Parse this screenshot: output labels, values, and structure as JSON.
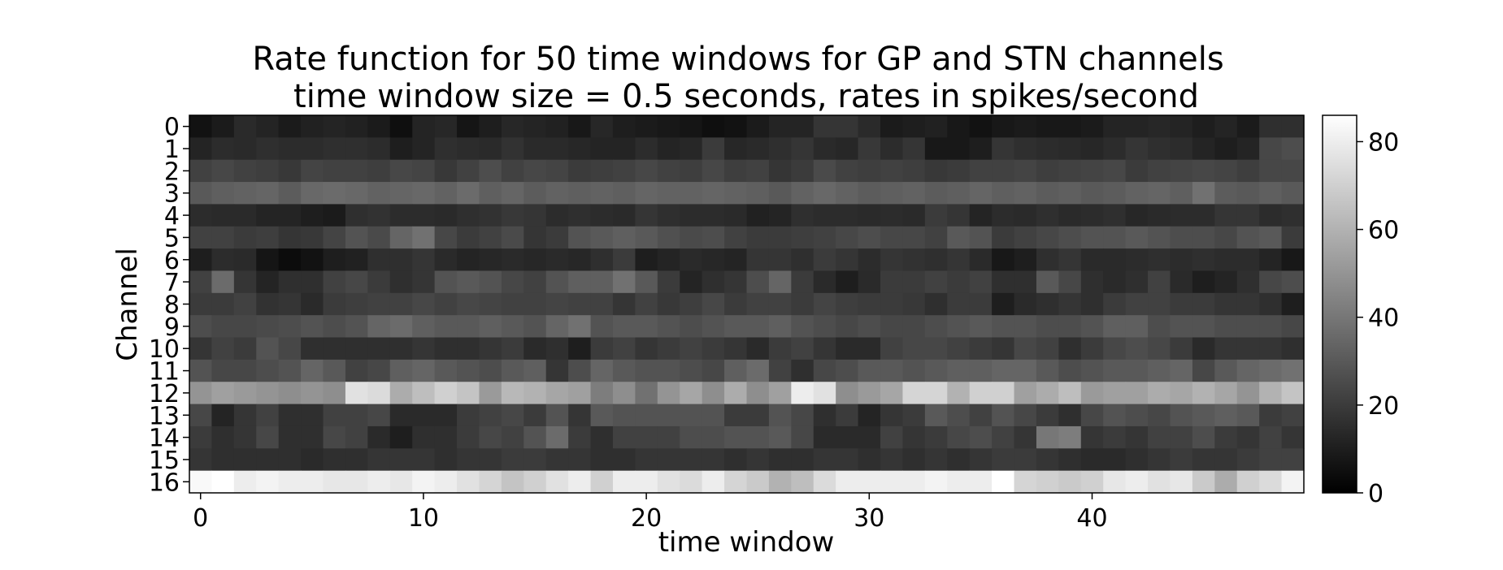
{
  "chart_data": {
    "type": "heatmap",
    "title": "Rate function for 50 time windows for GP and STN channels",
    "subtitle": "time window size = 0.5 seconds, rates in spikes/second",
    "xlabel": "time window",
    "ylabel": "Channel",
    "colormap": "gray",
    "x": [
      0,
      1,
      2,
      3,
      4,
      5,
      6,
      7,
      8,
      9,
      10,
      11,
      12,
      13,
      14,
      15,
      16,
      17,
      18,
      19,
      20,
      21,
      22,
      23,
      24,
      25,
      26,
      27,
      28,
      29,
      30,
      31,
      32,
      33,
      34,
      35,
      36,
      37,
      38,
      39,
      40,
      41,
      42,
      43,
      44,
      45,
      46,
      47,
      48,
      49
    ],
    "y": [
      0,
      1,
      2,
      3,
      4,
      5,
      6,
      7,
      8,
      9,
      10,
      11,
      12,
      13,
      14,
      15,
      16
    ],
    "x_ticks": [
      0,
      10,
      20,
      30,
      40
    ],
    "y_ticks": [
      0,
      1,
      2,
      3,
      4,
      5,
      6,
      7,
      8,
      9,
      10,
      11,
      12,
      13,
      14,
      15,
      16
    ],
    "colorbar_ticks": [
      0,
      20,
      40,
      60,
      80
    ],
    "colorbar_range": [
      0,
      86
    ],
    "values": [
      [
        6,
        9,
        14,
        12,
        9,
        11,
        12,
        11,
        9,
        5,
        12,
        13,
        7,
        10,
        13,
        12,
        11,
        8,
        13,
        10,
        9,
        8,
        7,
        5,
        6,
        9,
        12,
        12,
        18,
        18,
        14,
        9,
        10,
        11,
        8,
        6,
        8,
        9,
        8,
        8,
        9,
        12,
        12,
        13,
        12,
        10,
        12,
        9,
        16,
        16
      ],
      [
        12,
        15,
        14,
        16,
        15,
        15,
        16,
        16,
        15,
        10,
        12,
        16,
        15,
        14,
        17,
        14,
        14,
        13,
        12,
        12,
        15,
        12,
        13,
        20,
        13,
        14,
        16,
        18,
        14,
        13,
        19,
        15,
        18,
        8,
        8,
        10,
        18,
        16,
        15,
        14,
        13,
        15,
        18,
        16,
        15,
        12,
        10,
        12,
        24,
        26
      ],
      [
        22,
        24,
        22,
        21,
        19,
        23,
        22,
        22,
        21,
        24,
        23,
        19,
        22,
        26,
        22,
        24,
        23,
        20,
        21,
        22,
        24,
        22,
        21,
        24,
        21,
        22,
        18,
        20,
        25,
        22,
        21,
        22,
        21,
        19,
        20,
        22,
        22,
        23,
        21,
        22,
        23,
        24,
        20,
        22,
        23,
        24,
        23,
        21,
        24,
        24
      ],
      [
        30,
        32,
        33,
        34,
        31,
        35,
        36,
        35,
        33,
        34,
        35,
        33,
        36,
        32,
        34,
        31,
        33,
        32,
        33,
        32,
        34,
        33,
        33,
        34,
        33,
        32,
        30,
        33,
        35,
        33,
        31,
        32,
        33,
        31,
        32,
        34,
        32,
        33,
        31,
        32,
        30,
        31,
        33,
        34,
        32,
        38,
        31,
        30,
        32,
        30
      ],
      [
        15,
        14,
        14,
        12,
        12,
        10,
        9,
        16,
        17,
        15,
        15,
        14,
        16,
        17,
        19,
        18,
        15,
        16,
        15,
        14,
        18,
        16,
        15,
        15,
        14,
        11,
        12,
        16,
        15,
        15,
        14,
        15,
        14,
        20,
        18,
        12,
        15,
        14,
        16,
        14,
        15,
        16,
        13,
        14,
        15,
        15,
        18,
        18,
        15,
        16
      ],
      [
        22,
        22,
        20,
        21,
        18,
        19,
        23,
        28,
        25,
        34,
        38,
        24,
        20,
        22,
        25,
        18,
        20,
        28,
        30,
        32,
        30,
        27,
        25,
        26,
        22,
        20,
        20,
        21,
        22,
        24,
        26,
        24,
        24,
        22,
        30,
        28,
        20,
        22,
        24,
        26,
        28,
        28,
        30,
        28,
        26,
        26,
        24,
        28,
        30,
        20
      ],
      [
        10,
        15,
        14,
        7,
        4,
        6,
        10,
        11,
        16,
        16,
        18,
        14,
        12,
        13,
        14,
        13,
        14,
        13,
        16,
        20,
        10,
        12,
        14,
        13,
        12,
        18,
        18,
        16,
        20,
        18,
        15,
        18,
        17,
        16,
        18,
        14,
        8,
        10,
        16,
        18,
        14,
        14,
        15,
        16,
        15,
        16,
        15,
        15,
        12,
        8
      ],
      [
        22,
        36,
        18,
        12,
        16,
        16,
        22,
        24,
        20,
        16,
        18,
        28,
        30,
        28,
        24,
        22,
        28,
        32,
        32,
        38,
        30,
        20,
        12,
        16,
        18,
        26,
        34,
        20,
        14,
        10,
        14,
        20,
        20,
        22,
        20,
        22,
        16,
        16,
        30,
        24,
        16,
        14,
        16,
        22,
        14,
        10,
        12,
        16,
        24,
        26
      ],
      [
        20,
        20,
        22,
        17,
        18,
        14,
        20,
        21,
        22,
        22,
        24,
        22,
        24,
        23,
        22,
        22,
        23,
        22,
        22,
        18,
        22,
        19,
        21,
        24,
        20,
        22,
        22,
        20,
        23,
        21,
        20,
        20,
        19,
        16,
        20,
        20,
        10,
        14,
        16,
        18,
        16,
        20,
        22,
        22,
        20,
        20,
        18,
        18,
        16,
        10
      ],
      [
        26,
        24,
        24,
        25,
        26,
        28,
        26,
        28,
        34,
        36,
        32,
        30,
        30,
        32,
        30,
        28,
        34,
        38,
        28,
        30,
        30,
        28,
        26,
        28,
        30,
        30,
        32,
        28,
        26,
        24,
        26,
        24,
        24,
        26,
        28,
        30,
        28,
        28,
        26,
        26,
        28,
        32,
        32,
        26,
        28,
        28,
        26,
        26,
        26,
        24
      ],
      [
        18,
        22,
        20,
        28,
        24,
        16,
        16,
        16,
        16,
        16,
        18,
        16,
        16,
        18,
        20,
        14,
        16,
        10,
        20,
        22,
        18,
        20,
        22,
        20,
        18,
        14,
        20,
        22,
        18,
        14,
        14,
        22,
        24,
        24,
        22,
        20,
        18,
        24,
        22,
        16,
        20,
        24,
        26,
        24,
        20,
        14,
        18,
        18,
        18,
        16
      ],
      [
        28,
        24,
        24,
        26,
        28,
        34,
        30,
        22,
        24,
        32,
        34,
        30,
        28,
        26,
        30,
        32,
        18,
        26,
        34,
        30,
        28,
        28,
        26,
        24,
        32,
        36,
        22,
        16,
        24,
        26,
        30,
        30,
        28,
        30,
        32,
        32,
        34,
        34,
        30,
        26,
        28,
        30,
        30,
        32,
        34,
        24,
        30,
        34,
        36,
        38
      ],
      [
        50,
        54,
        52,
        50,
        48,
        50,
        48,
        76,
        74,
        58,
        64,
        70,
        66,
        52,
        62,
        60,
        56,
        54,
        42,
        48,
        38,
        50,
        56,
        48,
        58,
        48,
        54,
        80,
        76,
        48,
        52,
        56,
        72,
        72,
        60,
        70,
        70,
        54,
        58,
        64,
        52,
        54,
        54,
        58,
        56,
        60,
        56,
        50,
        60,
        66
      ],
      [
        24,
        12,
        18,
        22,
        16,
        16,
        22,
        22,
        24,
        14,
        14,
        14,
        20,
        22,
        24,
        20,
        28,
        18,
        30,
        28,
        28,
        28,
        28,
        28,
        20,
        20,
        28,
        24,
        16,
        20,
        12,
        18,
        20,
        30,
        26,
        22,
        28,
        24,
        20,
        16,
        24,
        28,
        26,
        24,
        28,
        30,
        32,
        30,
        20,
        22
      ],
      [
        20,
        16,
        18,
        24,
        16,
        16,
        24,
        22,
        14,
        10,
        16,
        16,
        20,
        24,
        22,
        28,
        36,
        20,
        16,
        22,
        22,
        22,
        26,
        26,
        28,
        28,
        30,
        24,
        14,
        14,
        14,
        22,
        18,
        20,
        24,
        26,
        22,
        18,
        40,
        42,
        18,
        20,
        18,
        22,
        22,
        26,
        20,
        18,
        22,
        18
      ],
      [
        18,
        16,
        16,
        16,
        16,
        14,
        16,
        16,
        18,
        18,
        18,
        16,
        18,
        18,
        20,
        20,
        18,
        18,
        16,
        16,
        18,
        18,
        18,
        18,
        16,
        18,
        16,
        16,
        18,
        18,
        16,
        18,
        16,
        18,
        16,
        18,
        20,
        20,
        18,
        16,
        14,
        14,
        16,
        18,
        20,
        18,
        18,
        20,
        22,
        22
      ],
      [
        84,
        86,
        80,
        82,
        80,
        80,
        78,
        78,
        80,
        78,
        82,
        80,
        76,
        72,
        66,
        70,
        76,
        80,
        70,
        80,
        80,
        76,
        74,
        80,
        72,
        68,
        60,
        64,
        74,
        80,
        80,
        80,
        80,
        82,
        80,
        80,
        86,
        72,
        70,
        68,
        70,
        78,
        80,
        76,
        78,
        68,
        58,
        70,
        74,
        82
      ]
    ]
  }
}
